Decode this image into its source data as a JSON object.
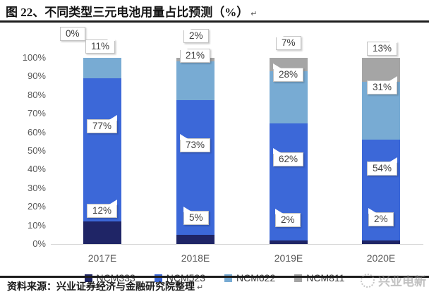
{
  "header": {
    "title": "图 22、不同类型三元电池用量占比预测（%）",
    "return_mark": "↵"
  },
  "chart_data": {
    "type": "bar",
    "stacked": true,
    "title": "不同类型三元电池用量占比预测（%）",
    "categories": [
      "2017E",
      "2018E",
      "2019E",
      "2020E"
    ],
    "series": [
      {
        "name": "NCM333",
        "color": "#1F2566",
        "values": [
          12,
          5,
          2,
          2
        ]
      },
      {
        "name": "NCM523",
        "color": "#3C68D8",
        "values": [
          77,
          73,
          62,
          54
        ]
      },
      {
        "name": "NCM622",
        "color": "#78ABD3",
        "values": [
          11,
          21,
          28,
          31
        ]
      },
      {
        "name": "NCM811",
        "color": "#A5A5A5",
        "values": [
          0,
          2,
          7,
          13
        ]
      }
    ],
    "y_ticks": [
      "100%",
      "90%",
      "80%",
      "70%",
      "60%",
      "50%",
      "40%",
      "30%",
      "20%",
      "10%",
      "0%"
    ],
    "ylim": [
      0,
      100
    ],
    "grid": false,
    "legend_position": "bottom",
    "callouts": [
      [
        "0%",
        "11%",
        "77%",
        "12%"
      ],
      [
        "2%",
        "21%",
        "73%",
        "5%"
      ],
      [
        "7%",
        "28%",
        "62%",
        "2%"
      ],
      [
        "13%",
        "31%",
        "54%",
        "2%"
      ]
    ]
  },
  "footer": {
    "source": "资料来源：兴业证券经济与金融研究院整理",
    "return_mark": "↵",
    "watermark": "兴业电新"
  }
}
